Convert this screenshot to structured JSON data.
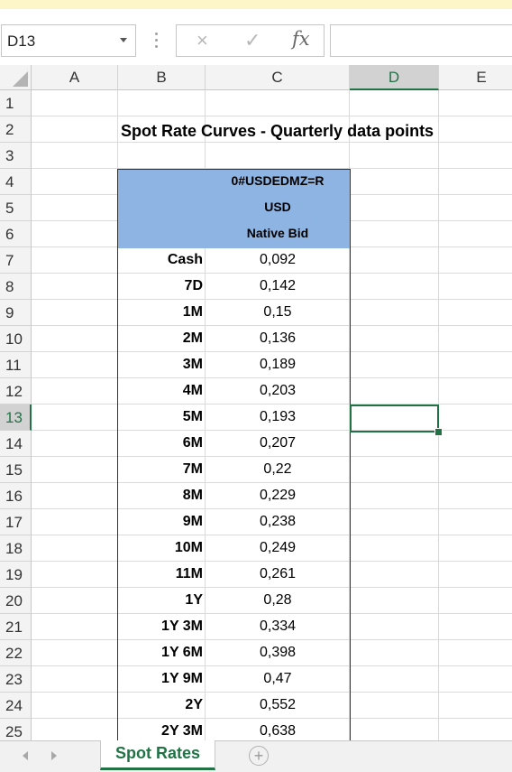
{
  "formula_bar": {
    "name_box": "D13",
    "cancel_icon": "×",
    "enter_icon": "✓",
    "fx_label": "fx",
    "formula_value": ""
  },
  "columns": [
    "A",
    "B",
    "C",
    "D",
    "E"
  ],
  "selected_column": "D",
  "selected_row": "13",
  "rows": [
    "1",
    "2",
    "3",
    "4",
    "5",
    "6",
    "7",
    "8",
    "9",
    "10",
    "11",
    "12",
    "13",
    "14",
    "15",
    "16",
    "17",
    "18",
    "19",
    "20",
    "21",
    "22",
    "23",
    "24",
    "25"
  ],
  "sheet": {
    "title": "Spot Rate Curves - Quarterly data points",
    "header": {
      "ric": "0#USDEDMZ=R",
      "currency": "USD",
      "field": "Native Bid"
    },
    "header_color": "#8db4e2",
    "data": [
      {
        "tenor": "Cash",
        "rate": "0,092"
      },
      {
        "tenor": "7D",
        "rate": "0,142"
      },
      {
        "tenor": "1M",
        "rate": "0,15"
      },
      {
        "tenor": "2M",
        "rate": "0,136"
      },
      {
        "tenor": "3M",
        "rate": "0,189"
      },
      {
        "tenor": "4M",
        "rate": "0,203"
      },
      {
        "tenor": "5M",
        "rate": "0,193"
      },
      {
        "tenor": "6M",
        "rate": "0,207"
      },
      {
        "tenor": "7M",
        "rate": "0,22"
      },
      {
        "tenor": "8M",
        "rate": "0,229"
      },
      {
        "tenor": "9M",
        "rate": "0,238"
      },
      {
        "tenor": "10M",
        "rate": "0,249"
      },
      {
        "tenor": "11M",
        "rate": "0,261"
      },
      {
        "tenor": "1Y",
        "rate": "0,28"
      },
      {
        "tenor": "1Y 3M",
        "rate": "0,334"
      },
      {
        "tenor": "1Y 6M",
        "rate": "0,398"
      },
      {
        "tenor": "1Y 9M",
        "rate": "0,47"
      },
      {
        "tenor": "2Y",
        "rate": "0,552"
      },
      {
        "tenor": "2Y 3M",
        "rate": "0,638"
      }
    ]
  },
  "tabs": {
    "active": "Spot Rates",
    "add_label": "+"
  },
  "accent_color": "#217346"
}
